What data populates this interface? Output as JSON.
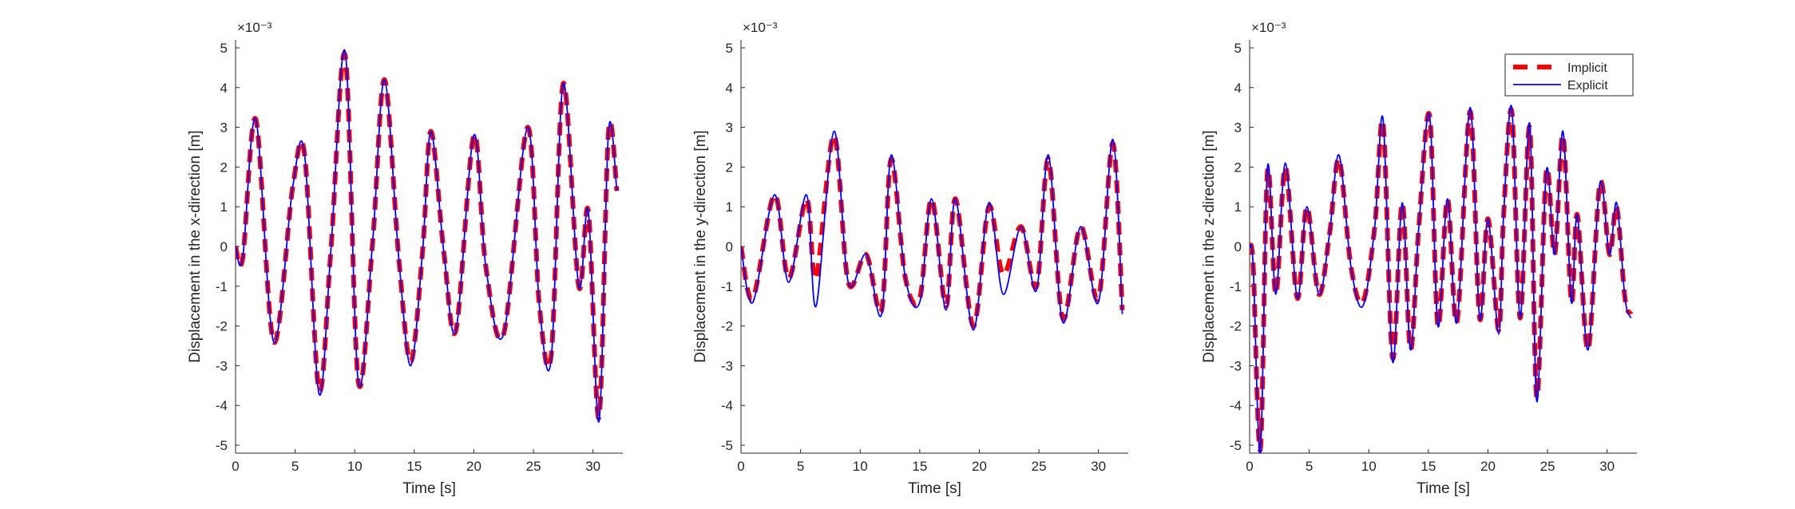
{
  "figure": {
    "colors": {
      "implicit": "#ff0000",
      "explicit": "#0000ff",
      "axis": "#262626"
    }
  },
  "chart_data": [
    {
      "type": "line",
      "xlabel": "Time [s]",
      "ylabel": "Displacement in the x-direction [m]",
      "exponent_label": "×10⁻³",
      "xlim": [
        0,
        32.5
      ],
      "ylim": [
        -5.2,
        5.2
      ],
      "xticks": [
        "0",
        "5",
        "10",
        "15",
        "20",
        "25",
        "30"
      ],
      "yticks": [
        "-5",
        "-4",
        "-3",
        "-2",
        "-1",
        "0",
        "1",
        "2",
        "3",
        "4",
        "5"
      ],
      "legend": null,
      "series": [
        {
          "name": "Implicit",
          "style": "dashed-thick",
          "color": "#ff0000",
          "x": [
            0,
            0.6,
            1.7,
            3.2,
            4.8,
            5.8,
            7.0,
            8.0,
            9.2,
            10.3,
            11.5,
            12.5,
            13.7,
            14.7,
            15.7,
            16.4,
            17.5,
            18.5,
            20.0,
            21.0,
            22.5,
            24.5,
            25.5,
            26.5,
            27.5,
            28.8,
            29.6,
            30.5,
            31.3,
            32.0
          ],
          "y": [
            0,
            -0.3,
            3.2,
            -2.4,
            1.5,
            2.3,
            -3.6,
            -0.1,
            4.8,
            -3.4,
            0.1,
            4.2,
            -0.3,
            -2.9,
            -0.1,
            2.9,
            -0.2,
            -2.1,
            2.8,
            -0.5,
            -2.2,
            3.0,
            -1.5,
            -2.7,
            4.1,
            -1.0,
            0.9,
            -4.3,
            2.9,
            1.4
          ]
        },
        {
          "name": "Explicit",
          "style": "solid",
          "color": "#0000ff",
          "x": [
            0,
            0.6,
            1.7,
            3.2,
            4.8,
            5.8,
            7.0,
            8.0,
            9.2,
            10.3,
            11.5,
            12.5,
            13.7,
            14.7,
            15.7,
            16.4,
            17.5,
            18.5,
            20.0,
            21.0,
            22.5,
            24.5,
            25.5,
            26.5,
            27.5,
            28.8,
            29.6,
            30.5,
            31.3,
            32.0
          ],
          "y": [
            0,
            -0.3,
            3.2,
            -2.4,
            1.5,
            2.3,
            -3.7,
            -0.1,
            4.9,
            -3.4,
            0.1,
            4.2,
            -0.3,
            -3.0,
            -0.1,
            2.9,
            -0.2,
            -2.1,
            2.8,
            -0.5,
            -2.2,
            3.0,
            -1.5,
            -2.8,
            4.1,
            -1.0,
            0.9,
            -4.4,
            2.9,
            1.4
          ]
        }
      ]
    },
    {
      "type": "line",
      "xlabel": "Time [s]",
      "ylabel": "Displacement in the y-direction [m]",
      "exponent_label": "×10⁻³",
      "xlim": [
        0,
        32.5
      ],
      "ylim": [
        -5.2,
        5.2
      ],
      "xticks": [
        "0",
        "5",
        "10",
        "15",
        "20",
        "25",
        "30"
      ],
      "yticks": [
        "-5",
        "-4",
        "-3",
        "-2",
        "-1",
        "0",
        "1",
        "2",
        "3",
        "4",
        "5"
      ],
      "legend": null,
      "series": [
        {
          "name": "Implicit",
          "style": "dashed-thick",
          "color": "#ff0000",
          "x": [
            0,
            1.0,
            2.8,
            4.0,
            5.5,
            6.3,
            7.8,
            9.0,
            10.5,
            11.8,
            12.6,
            13.8,
            15.0,
            16.0,
            17.2,
            18.0,
            19.5,
            20.8,
            22.0,
            23.5,
            24.8,
            25.8,
            27.0,
            28.5,
            30.0,
            31.2,
            32.0
          ],
          "y": [
            0,
            -1.3,
            1.3,
            -0.8,
            1.2,
            -0.8,
            2.8,
            -0.9,
            -0.2,
            -1.6,
            2.2,
            -0.8,
            -1.3,
            1.2,
            -1.5,
            1.2,
            -2.0,
            1.0,
            -0.7,
            0.5,
            -1.0,
            2.2,
            -1.8,
            0.5,
            -1.3,
            2.6,
            -1.6
          ]
        },
        {
          "name": "Explicit",
          "style": "solid",
          "color": "#0000ff",
          "x": [
            0,
            1.0,
            2.8,
            4.0,
            5.5,
            6.3,
            7.8,
            9.0,
            10.5,
            11.8,
            12.6,
            13.8,
            15.0,
            16.0,
            17.2,
            18.0,
            19.5,
            20.8,
            22.0,
            23.5,
            24.8,
            25.8,
            27.0,
            28.5,
            30.0,
            31.2,
            32.0
          ],
          "y": [
            0,
            -1.4,
            1.3,
            -0.9,
            1.3,
            -1.5,
            2.9,
            -0.9,
            -0.2,
            -1.7,
            2.3,
            -0.8,
            -1.4,
            1.2,
            -1.6,
            1.2,
            -2.1,
            1.1,
            -1.2,
            0.5,
            -1.1,
            2.3,
            -1.9,
            0.5,
            -1.4,
            2.7,
            -1.7
          ]
        }
      ]
    },
    {
      "type": "line",
      "xlabel": "Time [s]",
      "ylabel": "Displacement in the z-direction [m]",
      "exponent_label": "×10⁻³",
      "xlim": [
        0,
        32.5
      ],
      "ylim": [
        -5.2,
        5.2
      ],
      "xticks": [
        "0",
        "5",
        "10",
        "15",
        "20",
        "25",
        "30"
      ],
      "yticks": [
        "-5",
        "-4",
        "-3",
        "-2",
        "-1",
        "0",
        "1",
        "2",
        "3",
        "4",
        "5"
      ],
      "legend": {
        "position": "top-right",
        "entries": [
          "Implicit",
          "Explicit"
        ]
      },
      "series": [
        {
          "name": "Implicit",
          "style": "dashed-thick",
          "color": "#ff0000",
          "x": [
            0,
            0.3,
            0.9,
            1.5,
            2.2,
            3.0,
            4.0,
            4.8,
            5.8,
            6.7,
            7.5,
            8.5,
            9.5,
            10.5,
            11.2,
            12.0,
            12.8,
            13.5,
            14.2,
            15.1,
            15.8,
            16.6,
            17.4,
            18.5,
            19.3,
            20.0,
            20.9,
            21.3,
            22.0,
            22.7,
            23.5,
            24.1,
            24.9,
            25.6,
            26.3,
            27.0,
            27.5,
            28.4,
            29.4,
            30.2,
            30.8,
            31.5,
            32.0
          ],
          "y": [
            0,
            -0.5,
            -5.1,
            1.9,
            -1.2,
            2.0,
            -1.3,
            1.0,
            -1.2,
            0.3,
            2.2,
            -0.5,
            -1.4,
            0.5,
            3.1,
            -2.8,
            1.1,
            -2.6,
            0.5,
            3.3,
            -2.0,
            1.2,
            -1.9,
            3.4,
            -1.8,
            0.7,
            -2.1,
            0.7,
            3.4,
            -1.8,
            3.0,
            -3.8,
            1.9,
            -0.2,
            2.8,
            -1.4,
            0.8,
            -2.6,
            1.6,
            -0.2,
            1.0,
            -1.3,
            -1.7
          ]
        },
        {
          "name": "Explicit",
          "style": "solid",
          "color": "#0000ff",
          "x": [
            0,
            0.3,
            0.9,
            1.5,
            2.2,
            3.0,
            4.0,
            4.8,
            5.8,
            6.7,
            7.5,
            8.5,
            9.5,
            10.5,
            11.2,
            12.0,
            12.8,
            13.5,
            14.2,
            15.1,
            15.8,
            16.6,
            17.4,
            18.5,
            19.3,
            20.0,
            20.9,
            21.3,
            22.0,
            22.7,
            23.5,
            24.1,
            24.9,
            25.6,
            26.3,
            27.0,
            27.5,
            28.4,
            29.4,
            30.2,
            30.8,
            31.5,
            32.0
          ],
          "y": [
            0,
            -0.5,
            -5.2,
            2.0,
            -1.2,
            2.1,
            -1.3,
            1.0,
            -1.2,
            0.3,
            2.3,
            -0.5,
            -1.5,
            0.5,
            3.2,
            -2.9,
            1.1,
            -2.6,
            0.5,
            3.3,
            -2.0,
            1.2,
            -1.9,
            3.5,
            -1.8,
            0.7,
            -2.2,
            0.7,
            3.5,
            -1.8,
            3.1,
            -3.9,
            1.9,
            -0.2,
            2.9,
            -1.4,
            0.8,
            -2.6,
            1.6,
            -0.2,
            1.1,
            -1.3,
            -1.8
          ]
        }
      ]
    }
  ]
}
